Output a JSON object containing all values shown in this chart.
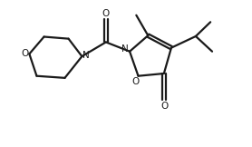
{
  "bg_color": "#ffffff",
  "line_color": "#1a1a1a",
  "line_width": 1.6,
  "fig_width": 2.78,
  "fig_height": 1.62,
  "dpi": 100,
  "xlim": [
    0,
    10
  ],
  "ylim": [
    0,
    6
  ]
}
